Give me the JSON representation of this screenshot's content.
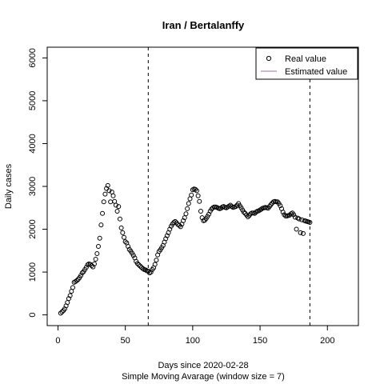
{
  "chart_data": {
    "type": "scatter",
    "title": "Iran / Bertalanffy",
    "xlabel": "Days since 2020-02-28",
    "xlabel2": "Simple Moving Avarage (window size = 7)",
    "ylabel": "Daily cases",
    "xlim": [
      -8,
      223
    ],
    "ylim": [
      -250,
      6250
    ],
    "xticks": [
      0,
      50,
      100,
      150,
      200
    ],
    "yticks": [
      0,
      1000,
      2000,
      3000,
      4000,
      5000,
      6000
    ],
    "legend": {
      "position": "top-right",
      "entries": [
        {
          "label": "Real value",
          "style": "open-circle",
          "color": "#000000"
        },
        {
          "label": "Estimated value",
          "style": "line",
          "color": "#9c6fa8"
        }
      ]
    },
    "vlines": [
      67,
      187
    ],
    "series": [
      {
        "name": "Real value",
        "points": [
          [
            2,
            40
          ],
          [
            3,
            70
          ],
          [
            4,
            100
          ],
          [
            5,
            140
          ],
          [
            6,
            210
          ],
          [
            7,
            290
          ],
          [
            8,
            380
          ],
          [
            9,
            450
          ],
          [
            10,
            550
          ],
          [
            11,
            640
          ],
          [
            12,
            760
          ],
          [
            13,
            780
          ],
          [
            14,
            800
          ],
          [
            15,
            830
          ],
          [
            16,
            870
          ],
          [
            17,
            920
          ],
          [
            18,
            980
          ],
          [
            19,
            1010
          ],
          [
            20,
            1060
          ],
          [
            21,
            1110
          ],
          [
            22,
            1170
          ],
          [
            23,
            1190
          ],
          [
            24,
            1180
          ],
          [
            25,
            1150
          ],
          [
            26,
            1120
          ],
          [
            27,
            1190
          ],
          [
            28,
            1300
          ],
          [
            29,
            1430
          ],
          [
            30,
            1600
          ],
          [
            31,
            1790
          ],
          [
            32,
            2100
          ],
          [
            33,
            2370
          ],
          [
            34,
            2640
          ],
          [
            35,
            2820
          ],
          [
            36,
            2950
          ],
          [
            37,
            3020
          ],
          [
            38,
            2900
          ],
          [
            39,
            2640
          ],
          [
            40,
            2870
          ],
          [
            41,
            2780
          ],
          [
            42,
            2650
          ],
          [
            43,
            2560
          ],
          [
            44,
            2420
          ],
          [
            45,
            2530
          ],
          [
            46,
            2240
          ],
          [
            47,
            2030
          ],
          [
            48,
            1920
          ],
          [
            49,
            1810
          ],
          [
            50,
            1710
          ],
          [
            51,
            1680
          ],
          [
            52,
            1600
          ],
          [
            53,
            1530
          ],
          [
            54,
            1490
          ],
          [
            55,
            1440
          ],
          [
            56,
            1390
          ],
          [
            57,
            1330
          ],
          [
            58,
            1250
          ],
          [
            59,
            1200
          ],
          [
            60,
            1170
          ],
          [
            61,
            1140
          ],
          [
            62,
            1110
          ],
          [
            63,
            1080
          ],
          [
            64,
            1060
          ],
          [
            65,
            1050
          ],
          [
            66,
            1030
          ],
          [
            67,
            1020
          ],
          [
            68,
            980
          ],
          [
            69,
            1000
          ],
          [
            70,
            1060
          ],
          [
            71,
            1100
          ],
          [
            72,
            1180
          ],
          [
            73,
            1280
          ],
          [
            74,
            1400
          ],
          [
            75,
            1480
          ],
          [
            76,
            1520
          ],
          [
            77,
            1570
          ],
          [
            78,
            1620
          ],
          [
            79,
            1700
          ],
          [
            80,
            1780
          ],
          [
            81,
            1850
          ],
          [
            82,
            1920
          ],
          [
            83,
            2000
          ],
          [
            84,
            2070
          ],
          [
            85,
            2120
          ],
          [
            86,
            2160
          ],
          [
            87,
            2180
          ],
          [
            88,
            2150
          ],
          [
            89,
            2110
          ],
          [
            90,
            2090
          ],
          [
            91,
            2060
          ],
          [
            92,
            2120
          ],
          [
            93,
            2200
          ],
          [
            94,
            2270
          ],
          [
            95,
            2360
          ],
          [
            96,
            2480
          ],
          [
            97,
            2600
          ],
          [
            98,
            2710
          ],
          [
            99,
            2800
          ],
          [
            100,
            2920
          ],
          [
            101,
            2940
          ],
          [
            102,
            2930
          ],
          [
            103,
            2900
          ],
          [
            104,
            2780
          ],
          [
            105,
            2650
          ],
          [
            106,
            2420
          ],
          [
            107,
            2270
          ],
          [
            108,
            2200
          ],
          [
            109,
            2210
          ],
          [
            110,
            2250
          ],
          [
            111,
            2300
          ],
          [
            112,
            2350
          ],
          [
            113,
            2420
          ],
          [
            114,
            2470
          ],
          [
            115,
            2500
          ],
          [
            116,
            2520
          ],
          [
            117,
            2520
          ],
          [
            118,
            2510
          ],
          [
            119,
            2490
          ],
          [
            120,
            2480
          ],
          [
            121,
            2490
          ],
          [
            122,
            2520
          ],
          [
            123,
            2530
          ],
          [
            124,
            2510
          ],
          [
            125,
            2500
          ],
          [
            126,
            2520
          ],
          [
            127,
            2540
          ],
          [
            128,
            2560
          ],
          [
            129,
            2530
          ],
          [
            130,
            2510
          ],
          [
            131,
            2520
          ],
          [
            132,
            2530
          ],
          [
            133,
            2560
          ],
          [
            134,
            2600
          ],
          [
            135,
            2550
          ],
          [
            136,
            2500
          ],
          [
            137,
            2450
          ],
          [
            138,
            2400
          ],
          [
            139,
            2370
          ],
          [
            140,
            2330
          ],
          [
            141,
            2290
          ],
          [
            142,
            2320
          ],
          [
            143,
            2360
          ],
          [
            144,
            2380
          ],
          [
            145,
            2380
          ],
          [
            146,
            2370
          ],
          [
            147,
            2400
          ],
          [
            148,
            2420
          ],
          [
            149,
            2430
          ],
          [
            150,
            2450
          ],
          [
            151,
            2470
          ],
          [
            152,
            2490
          ],
          [
            153,
            2500
          ],
          [
            154,
            2510
          ],
          [
            155,
            2500
          ],
          [
            156,
            2490
          ],
          [
            157,
            2530
          ],
          [
            158,
            2570
          ],
          [
            159,
            2610
          ],
          [
            160,
            2640
          ],
          [
            161,
            2650
          ],
          [
            162,
            2640
          ],
          [
            163,
            2640
          ],
          [
            164,
            2600
          ],
          [
            165,
            2550
          ],
          [
            166,
            2480
          ],
          [
            167,
            2400
          ],
          [
            168,
            2340
          ],
          [
            169,
            2310
          ],
          [
            170,
            2310
          ],
          [
            171,
            2320
          ],
          [
            172,
            2330
          ],
          [
            173,
            2360
          ],
          [
            174,
            2380
          ],
          [
            175,
            2340
          ],
          [
            176,
            2280
          ],
          [
            177,
            2000
          ],
          [
            178,
            2260
          ],
          [
            179,
            2240
          ],
          [
            180,
            1920
          ],
          [
            181,
            2220
          ],
          [
            182,
            1900
          ],
          [
            183,
            2200
          ],
          [
            184,
            2190
          ],
          [
            185,
            2180
          ],
          [
            186,
            2170
          ],
          [
            187,
            2160
          ]
        ]
      },
      {
        "name": "Estimated value",
        "points": []
      }
    ]
  }
}
